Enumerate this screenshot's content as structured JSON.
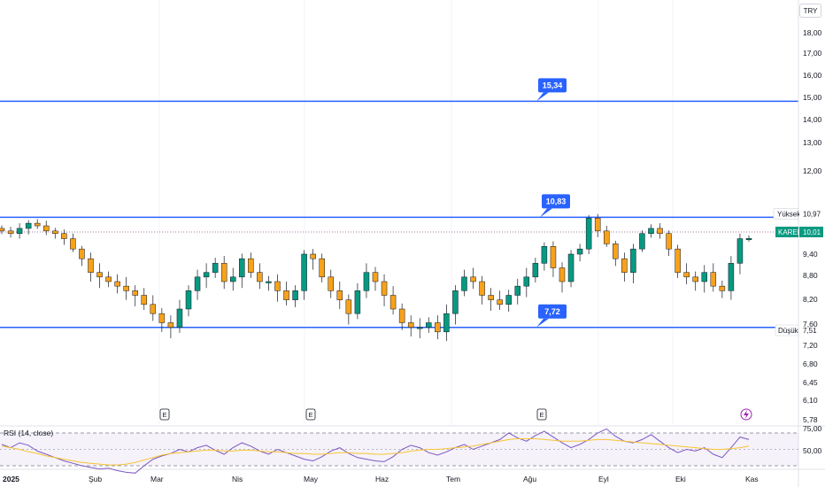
{
  "currency_badge": "TRY",
  "chart_data": {
    "type": "candlestick",
    "symbol": "KAREL",
    "last_price": "10,01",
    "y_ticks": [
      "18,00",
      "17,00",
      "16,00",
      "15,00",
      "14,00",
      "13,00",
      "12,00",
      "10,97",
      "9,40",
      "8,80",
      "8,20",
      "7,60",
      "7,20",
      "6,80",
      "6,45",
      "6,10",
      "5,78"
    ],
    "x_ticks": [
      "2025",
      "Şub",
      "Mar",
      "Nis",
      "May",
      "Haz",
      "Tem",
      "Ağu",
      "Eyl",
      "Eki",
      "Kas"
    ],
    "levels": [
      {
        "label": "15,34",
        "value": 15.34
      },
      {
        "label": "10,83",
        "value": 10.83
      },
      {
        "label": "7,72",
        "value": 7.72
      }
    ],
    "high_label": "Yüksek",
    "high_value": "10,97",
    "low_label": "Düşük",
    "low_value": "7,51",
    "earnings_markers": [
      "E",
      "E",
      "E"
    ],
    "close_series_approx": [
      10.3,
      10.2,
      10.4,
      10.6,
      10.5,
      10.3,
      10.2,
      10.0,
      9.6,
      9.3,
      9.0,
      8.9,
      8.8,
      8.7,
      8.6,
      8.5,
      8.3,
      8.1,
      7.9,
      7.8,
      8.2,
      8.6,
      8.9,
      9.0,
      9.2,
      8.8,
      8.9,
      9.3,
      9.0,
      8.8,
      8.8,
      8.6,
      8.4,
      8.6,
      9.4,
      9.3,
      8.9,
      8.6,
      8.4,
      8.1,
      8.6,
      9.0,
      8.8,
      8.5,
      8.2,
      7.9,
      7.8,
      7.8,
      7.9,
      7.7,
      8.1,
      8.6,
      8.9,
      8.8,
      8.5,
      8.4,
      8.3,
      8.5,
      8.7,
      8.9,
      9.2,
      9.7,
      9.1,
      8.8,
      9.4,
      9.6,
      10.8,
      10.3,
      9.8,
      9.3,
      9.0,
      9.6,
      10.2,
      10.4,
      10.2,
      9.6,
      9.0,
      8.9,
      8.8,
      9.0,
      8.7,
      8.6,
      9.2,
      10.0,
      10.01
    ],
    "rsi": {
      "label": "RSI (14, close)",
      "y_ticks": [
        "75,00",
        "50,00"
      ],
      "values_approx": [
        56,
        52,
        58,
        55,
        48,
        44,
        40,
        36,
        33,
        30,
        28,
        26,
        27,
        24,
        22,
        21,
        30,
        38,
        42,
        45,
        50,
        47,
        52,
        55,
        49,
        44,
        52,
        58,
        54,
        48,
        44,
        50,
        46,
        42,
        38,
        36,
        41,
        48,
        52,
        45,
        40,
        38,
        36,
        35,
        41,
        50,
        55,
        52,
        46,
        43,
        47,
        52,
        56,
        50,
        54,
        58,
        62,
        70,
        64,
        60,
        67,
        72,
        65,
        58,
        52,
        56,
        62,
        70,
        75,
        66,
        60,
        58,
        62,
        68,
        60,
        52,
        46,
        50,
        48,
        52,
        44,
        40,
        52,
        65,
        62
      ],
      "ma_values_approx": [
        54,
        52,
        50,
        47,
        45,
        42,
        40,
        38,
        36,
        34,
        33,
        32,
        31,
        31,
        32,
        34,
        37,
        40,
        43,
        45,
        46,
        47,
        48,
        49,
        49,
        48,
        48,
        49,
        49,
        48,
        47,
        47,
        46,
        45,
        45,
        44,
        44,
        45,
        46,
        46,
        45,
        45,
        44,
        44,
        45,
        46,
        48,
        49,
        50,
        50,
        51,
        52,
        53,
        54,
        56,
        58,
        60,
        62,
        63,
        63,
        63,
        62,
        61,
        60,
        60,
        60,
        61,
        62,
        62,
        61,
        60,
        59,
        58,
        57,
        56,
        55,
        54,
        53,
        52,
        51,
        50,
        50,
        51,
        52,
        54
      ]
    }
  }
}
